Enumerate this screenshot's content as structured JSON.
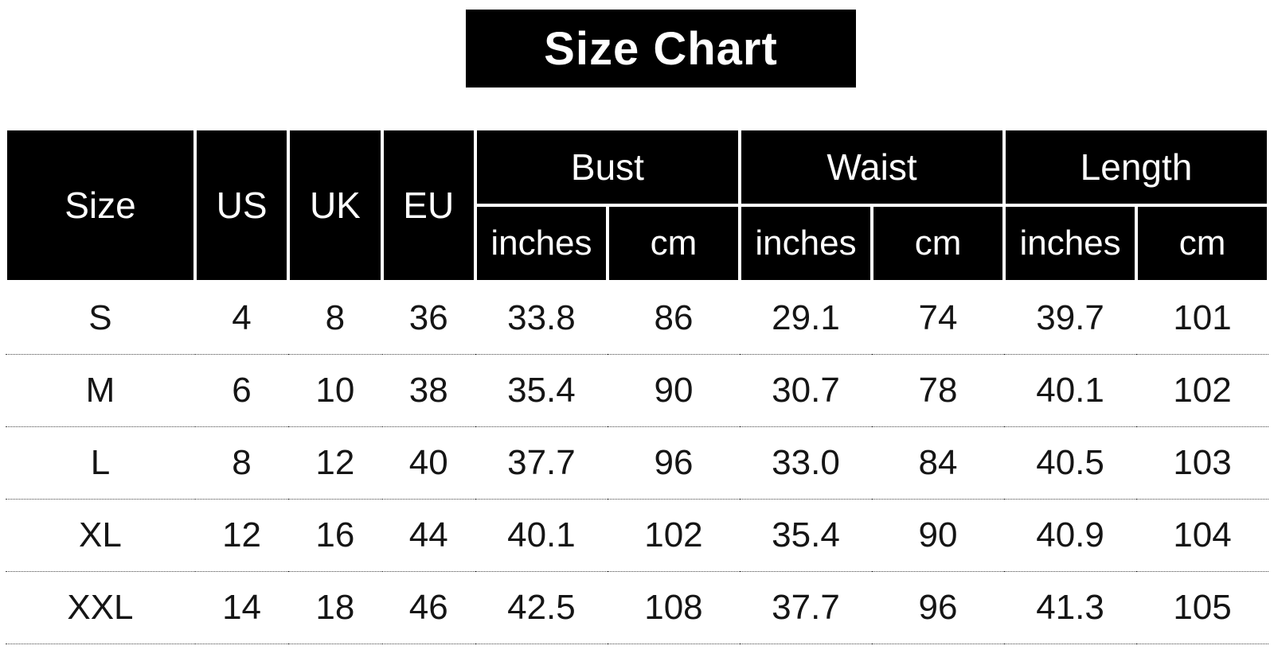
{
  "title": "Size Chart",
  "chart_data": {
    "type": "table",
    "title": "Size Chart",
    "group_headers": [
      {
        "label": "Size",
        "rowspan": 2
      },
      {
        "label": "US",
        "rowspan": 2
      },
      {
        "label": "UK",
        "rowspan": 2
      },
      {
        "label": "EU",
        "rowspan": 2
      },
      {
        "label": "Bust",
        "colspan": 2
      },
      {
        "label": "Waist",
        "colspan": 2
      },
      {
        "label": "Length",
        "colspan": 2
      }
    ],
    "sub_headers": [
      "inches",
      "cm",
      "inches",
      "cm",
      "inches",
      "cm"
    ],
    "columns": [
      "Size",
      "US",
      "UK",
      "EU",
      "Bust (inches)",
      "Bust (cm)",
      "Waist (inches)",
      "Waist (cm)",
      "Length (inches)",
      "Length (cm)"
    ],
    "rows": [
      [
        "S",
        "4",
        "8",
        "36",
        "33.8",
        "86",
        "29.1",
        "74",
        "39.7",
        "101"
      ],
      [
        "M",
        "6",
        "10",
        "38",
        "35.4",
        "90",
        "30.7",
        "78",
        "40.1",
        "102"
      ],
      [
        "L",
        "8",
        "12",
        "40",
        "37.7",
        "96",
        "33.0",
        "84",
        "40.5",
        "103"
      ],
      [
        "XL",
        "12",
        "16",
        "44",
        "40.1",
        "102",
        "35.4",
        "90",
        "40.9",
        "104"
      ],
      [
        "XXL",
        "14",
        "18",
        "46",
        "42.5",
        "108",
        "37.7",
        "96",
        "41.3",
        "105"
      ]
    ]
  },
  "colors": {
    "header_bg": "#000000",
    "header_text": "#ffffff",
    "body_text": "#151515",
    "grid_line": "#ffffff",
    "row_separator": "#444444",
    "page_bg": "#ffffff"
  }
}
